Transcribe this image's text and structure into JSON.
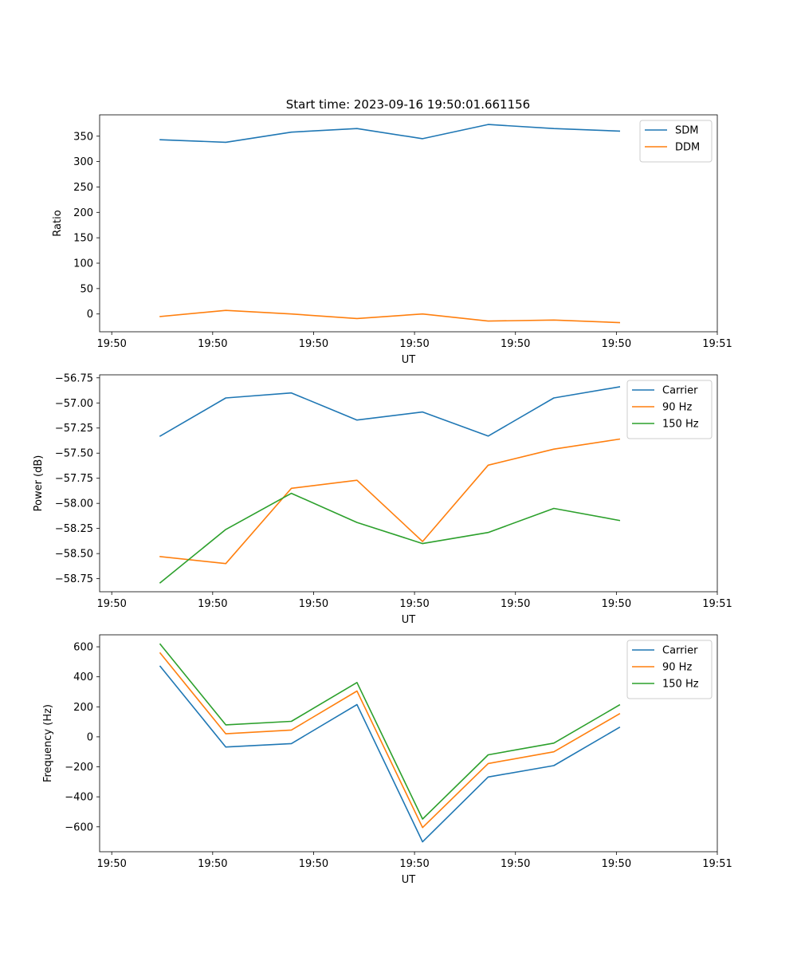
{
  "figure_title": "Start time: 2023-09-16 19:50:01.661156",
  "chart_data": [
    {
      "type": "line",
      "title": "Start time: 2023-09-16 19:50:01.661156",
      "xlabel": "UT",
      "ylabel": "Ratio",
      "x_tick_labels": [
        "19:50",
        "19:50",
        "19:50",
        "19:50",
        "19:50",
        "19:50",
        "19:51"
      ],
      "x_ticks": [
        0,
        10,
        20,
        30,
        40,
        50,
        60
      ],
      "xlim": [
        -1.2,
        60
      ],
      "y_ticks": [
        0,
        50,
        100,
        150,
        200,
        250,
        300,
        350
      ],
      "ylim": [
        -35,
        392
      ],
      "legend_position": "top-right",
      "x": [
        4.8,
        11.3,
        17.8,
        24.3,
        30.8,
        37.3,
        43.8,
        50.3
      ],
      "series": [
        {
          "name": "SDM",
          "color": "#1f77b4",
          "values": [
            343,
            338,
            358,
            365,
            345,
            373,
            365,
            360
          ]
        },
        {
          "name": "DDM",
          "color": "#ff7f0e",
          "values": [
            -5,
            7,
            0,
            -9,
            0,
            -14,
            -12,
            -17
          ]
        }
      ]
    },
    {
      "type": "line",
      "title": "",
      "xlabel": "UT",
      "ylabel": "Power (dB)",
      "x_tick_labels": [
        "19:50",
        "19:50",
        "19:50",
        "19:50",
        "19:50",
        "19:50",
        "19:51"
      ],
      "x_ticks": [
        0,
        10,
        20,
        30,
        40,
        50,
        60
      ],
      "xlim": [
        -1.2,
        60
      ],
      "y_ticks": [
        -58.75,
        -58.5,
        -58.25,
        -58.0,
        -57.75,
        -57.5,
        -57.25,
        -57.0,
        -56.75
      ],
      "y_tick_labels": [
        "−58.75",
        "−58.50",
        "−58.25",
        "−58.00",
        "−57.75",
        "−57.50",
        "−57.25",
        "−57.00",
        "−56.75"
      ],
      "ylim": [
        -58.88,
        -56.72
      ],
      "legend_position": "top-right",
      "x": [
        4.8,
        11.3,
        17.8,
        24.3,
        30.8,
        37.3,
        43.8,
        50.3
      ],
      "series": [
        {
          "name": "Carrier",
          "color": "#1f77b4",
          "values": [
            -57.33,
            -56.95,
            -56.9,
            -57.17,
            -57.09,
            -57.33,
            -56.95,
            -56.84
          ]
        },
        {
          "name": "90 Hz",
          "color": "#ff7f0e",
          "values": [
            -58.53,
            -58.6,
            -57.85,
            -57.77,
            -58.38,
            -57.62,
            -57.46,
            -57.36
          ]
        },
        {
          "name": "150 Hz",
          "color": "#2ca02c",
          "values": [
            -58.79,
            -58.26,
            -57.9,
            -58.19,
            -58.4,
            -58.29,
            -58.05,
            -58.17
          ]
        }
      ]
    },
    {
      "type": "line",
      "title": "",
      "xlabel": "UT",
      "ylabel": "Frequency (Hz)",
      "x_tick_labels": [
        "19:50",
        "19:50",
        "19:50",
        "19:50",
        "19:50",
        "19:50",
        "19:51"
      ],
      "x_ticks": [
        0,
        10,
        20,
        30,
        40,
        50,
        60
      ],
      "xlim": [
        -1.2,
        60
      ],
      "y_ticks": [
        -600,
        -400,
        -200,
        0,
        200,
        400,
        600
      ],
      "y_tick_labels": [
        "−600",
        "−400",
        "−200",
        "0",
        "200",
        "400",
        "600"
      ],
      "ylim": [
        -766,
        680
      ],
      "legend_position": "top-right",
      "x": [
        4.8,
        11.3,
        17.8,
        24.3,
        30.8,
        37.3,
        43.8,
        50.3
      ],
      "series": [
        {
          "name": "Carrier",
          "color": "#1f77b4",
          "values": [
            470,
            -68,
            -45,
            215,
            -700,
            -268,
            -192,
            63
          ]
        },
        {
          "name": "90 Hz",
          "color": "#ff7f0e",
          "values": [
            558,
            20,
            45,
            305,
            -605,
            -178,
            -100,
            153
          ]
        },
        {
          "name": "150 Hz",
          "color": "#2ca02c",
          "values": [
            618,
            80,
            103,
            362,
            -548,
            -120,
            -42,
            212
          ]
        }
      ]
    }
  ]
}
